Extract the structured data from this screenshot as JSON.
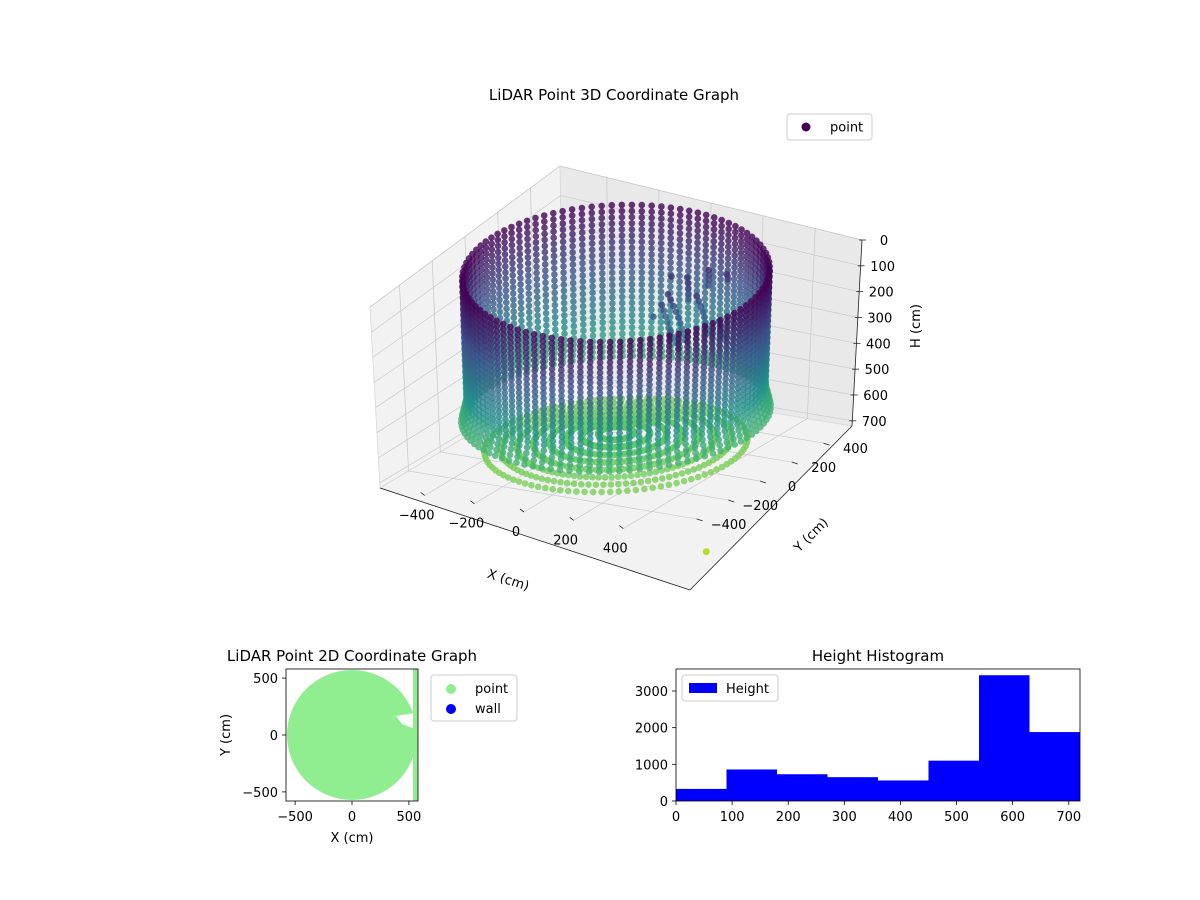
{
  "chart_data": [
    {
      "type": "scatter",
      "projection": "3d",
      "title": "LiDAR Point 3D Coordinate Graph",
      "xlabel": "X (cm)",
      "ylabel": "Y (cm)",
      "zlabel": "H (cm)",
      "x_ticks": [
        -400,
        -200,
        0,
        200,
        400
      ],
      "y_ticks": [
        -400,
        -200,
        0,
        200,
        400
      ],
      "z_ticks": [
        0,
        100,
        200,
        300,
        400,
        500,
        600,
        700
      ],
      "x_tick_labels": [
        "−400",
        "−200",
        "0",
        "200",
        "400"
      ],
      "y_tick_labels": [
        "−400",
        "−200",
        "0",
        "200",
        "400"
      ],
      "z_tick_labels": [
        "0",
        "100",
        "200",
        "300",
        "400",
        "500",
        "600",
        "700"
      ],
      "xlim": [
        -580,
        580
      ],
      "ylim": [
        -580,
        580
      ],
      "zlim": [
        0,
        720
      ],
      "z_inverted": true,
      "colormap": "viridis",
      "legend": {
        "position": "top-right",
        "entries": [
          "point"
        ]
      },
      "series": [
        {
          "name": "point",
          "color": "#440154",
          "ring_radius_cm": 500,
          "height_range_cm": [
            0,
            720
          ]
        }
      ]
    },
    {
      "type": "scatter",
      "title": "LiDAR Point 2D Coordinate Graph",
      "xlabel": "X (cm)",
      "ylabel": "Y (cm)",
      "x_ticks": [
        -500,
        0,
        500
      ],
      "y_ticks": [
        -500,
        0,
        500
      ],
      "x_tick_labels": [
        "−500",
        "0",
        "500"
      ],
      "y_tick_labels": [
        "−500",
        "0",
        "500"
      ],
      "xlim": [
        -580,
        580
      ],
      "ylim": [
        -580,
        580
      ],
      "legend": {
        "position": "outside-right",
        "entries": [
          "point",
          "wall"
        ]
      },
      "series": [
        {
          "name": "point",
          "color": "#90ee90"
        },
        {
          "name": "wall",
          "color": "#0000ff"
        }
      ]
    },
    {
      "type": "bar",
      "subtype": "histogram",
      "title": "Height Histogram",
      "xlabel": "",
      "ylabel": "",
      "bin_edges": [
        0,
        90,
        180,
        270,
        360,
        450,
        540,
        630,
        720
      ],
      "values": [
        330,
        860,
        730,
        650,
        560,
        1100,
        3430,
        1880
      ],
      "xlim": [
        0,
        720
      ],
      "ylim": [
        0,
        3600
      ],
      "x_ticks": [
        0,
        100,
        200,
        300,
        400,
        500,
        600,
        700
      ],
      "y_ticks": [
        0,
        1000,
        2000,
        3000
      ],
      "x_tick_labels": [
        "0",
        "100",
        "200",
        "300",
        "400",
        "500",
        "600",
        "700"
      ],
      "y_tick_labels": [
        "0",
        "1000",
        "2000",
        "3000"
      ],
      "legend": {
        "position": "top-left",
        "entries": [
          "Height"
        ]
      },
      "series": [
        {
          "name": "Height",
          "color": "#0000ff"
        }
      ]
    }
  ]
}
